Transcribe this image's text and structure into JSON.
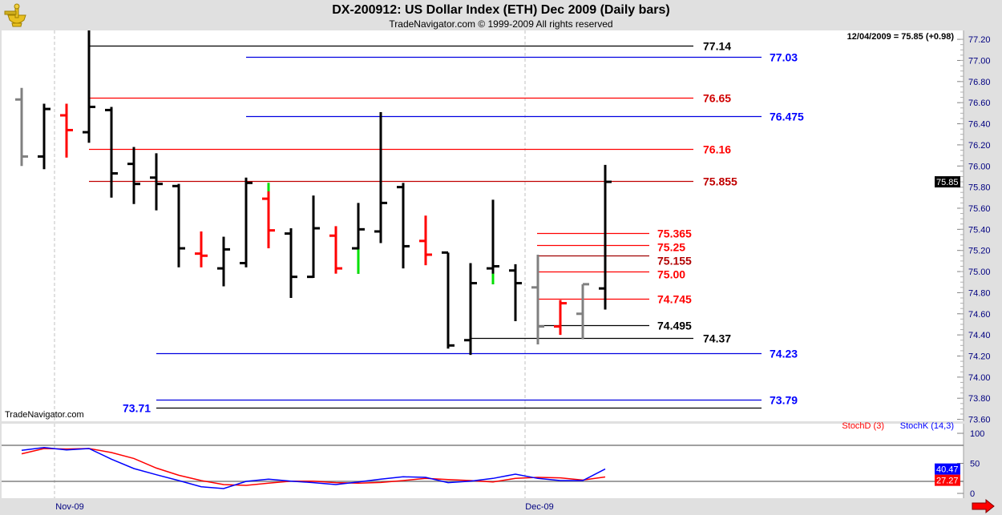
{
  "header": {
    "title": "DX-200912:  US Dollar Index (ETH) Dec 2009  (Daily bars)",
    "subtitle": "TradeNavigator.com © 1999-2009 All rights reserved",
    "last_value": "12/04/2009 = 75.85 (+0.98)",
    "watermark": "TradeNavigator.com",
    "logo": "sextant-logo"
  },
  "chart_data": [
    {
      "type": "ohlc",
      "title": "DX-200912:  US Dollar Index (ETH) Dec 2009  (Daily bars)",
      "ylim": [
        73.6,
        77.2
      ],
      "y_ticks": [
        "77.20",
        "77.00",
        "76.80",
        "76.60",
        "76.40",
        "76.20",
        "76.00",
        "75.80",
        "75.60",
        "75.40",
        "75.20",
        "75.00",
        "74.80",
        "74.60",
        "74.40",
        "74.20",
        "74.00",
        "73.80",
        "73.60"
      ],
      "x_tick_labels": [
        "Nov-09",
        "Dec-09"
      ],
      "last_price_label": "75.85",
      "colors": {
        "up": "#000000",
        "down": "#ff0000",
        "neutral": "#808080",
        "highlight": "#00e000"
      },
      "bars": [
        {
          "o": 76.63,
          "h": 76.74,
          "l": 76.0,
          "c": 76.09,
          "color": "#808080"
        },
        {
          "o": 76.09,
          "h": 76.59,
          "l": 75.97,
          "c": 76.54,
          "color": "#000000"
        },
        {
          "o": 76.48,
          "h": 76.59,
          "l": 76.08,
          "c": 76.34,
          "color": "#ff0000"
        },
        {
          "o": 76.32,
          "h": 77.3,
          "l": 76.22,
          "c": 76.56,
          "color": "#000000"
        },
        {
          "o": 76.53,
          "h": 76.56,
          "l": 75.7,
          "c": 75.93,
          "color": "#000000"
        },
        {
          "o": 76.02,
          "h": 76.18,
          "l": 75.64,
          "c": 75.83,
          "color": "#000000"
        },
        {
          "o": 75.89,
          "h": 76.12,
          "l": 75.58,
          "c": 75.83,
          "color": "#000000"
        },
        {
          "o": 75.81,
          "h": 75.83,
          "l": 75.04,
          "c": 75.22,
          "color": "#000000"
        },
        {
          "o": 75.17,
          "h": 75.38,
          "l": 75.04,
          "c": 75.15,
          "color": "#ff0000"
        },
        {
          "o": 75.03,
          "h": 75.33,
          "l": 74.86,
          "c": 75.21,
          "color": "#000000"
        },
        {
          "o": 75.08,
          "h": 75.89,
          "l": 75.04,
          "c": 75.84,
          "color": "#000000"
        },
        {
          "o": 75.69,
          "h": 75.84,
          "l": 75.22,
          "c": 75.39,
          "color": "#ff0000",
          "highlight": [
            75.76,
            75.84
          ]
        },
        {
          "o": 75.36,
          "h": 75.41,
          "l": 74.75,
          "c": 74.95,
          "color": "#000000"
        },
        {
          "o": 74.95,
          "h": 75.72,
          "l": 74.94,
          "c": 75.41,
          "color": "#000000"
        },
        {
          "o": 75.34,
          "h": 75.43,
          "l": 74.98,
          "c": 75.03,
          "color": "#ff0000"
        },
        {
          "o": 75.22,
          "h": 75.65,
          "l": 74.98,
          "c": 75.4,
          "color": "#000000",
          "highlight": [
            74.98,
            75.21
          ]
        },
        {
          "o": 75.38,
          "h": 76.51,
          "l": 75.27,
          "c": 75.65,
          "color": "#000000"
        },
        {
          "o": 75.8,
          "h": 75.84,
          "l": 75.03,
          "c": 75.24,
          "color": "#000000"
        },
        {
          "o": 75.29,
          "h": 75.53,
          "l": 75.06,
          "c": 75.16,
          "color": "#ff0000"
        },
        {
          "o": 75.18,
          "h": 75.18,
          "l": 74.27,
          "c": 74.3,
          "color": "#000000"
        },
        {
          "o": 74.35,
          "h": 75.08,
          "l": 74.21,
          "c": 74.89,
          "color": "#000000"
        },
        {
          "o": 75.03,
          "h": 75.68,
          "l": 74.88,
          "c": 75.05,
          "color": "#000000",
          "highlight": [
            74.88,
            74.98
          ]
        },
        {
          "o": 75.01,
          "h": 75.07,
          "l": 74.53,
          "c": 74.89,
          "color": "#000000"
        },
        {
          "o": 74.85,
          "h": 75.16,
          "l": 74.31,
          "c": 74.48,
          "color": "#808080"
        },
        {
          "o": 74.48,
          "h": 74.73,
          "l": 74.4,
          "c": 74.7,
          "color": "#ff0000"
        },
        {
          "o": 74.6,
          "h": 74.88,
          "l": 74.36,
          "c": 74.88,
          "color": "#808080"
        },
        {
          "o": 74.84,
          "h": 76.01,
          "l": 74.64,
          "c": 75.85,
          "color": "#000000"
        }
      ],
      "levels": [
        {
          "value": 77.14,
          "label": "77.14",
          "color": "#000000",
          "label_color": "#000000"
        },
        {
          "value": 77.03,
          "label": "77.03",
          "color": "#0000e0",
          "label_color": "#0000ff"
        },
        {
          "value": 76.65,
          "label": "76.65",
          "color": "#ff0000",
          "label_color": "#d00000"
        },
        {
          "value": 76.475,
          "label": "76.475",
          "color": "#0000e0",
          "label_color": "#0000ff"
        },
        {
          "value": 76.16,
          "label": "76.16",
          "color": "#ff0000",
          "label_color": "#ff0000"
        },
        {
          "value": 75.855,
          "label": "75.855",
          "color": "#c00000",
          "label_color": "#c00000"
        },
        {
          "value": 75.365,
          "label": "75.365",
          "color": "#ff0000",
          "label_color": "#ff0000"
        },
        {
          "value": 75.25,
          "label": "75.25",
          "color": "#ff0000",
          "label_color": "#ff0000"
        },
        {
          "value": 75.155,
          "label": "75.155",
          "color": "#a00000",
          "label_color": "#b00000"
        },
        {
          "value": 75.0,
          "label": "75.00",
          "color": "#ff0000",
          "label_color": "#ff0000"
        },
        {
          "value": 74.745,
          "label": "74.745",
          "color": "#ff0000",
          "label_color": "#ff0000"
        },
        {
          "value": 74.495,
          "label": "74.495",
          "color": "#000000",
          "label_color": "#000000"
        },
        {
          "value": 74.37,
          "label": "74.37",
          "color": "#000000",
          "label_color": "#000000"
        },
        {
          "value": 74.23,
          "label": "74.23",
          "color": "#0000e0",
          "label_color": "#0000ff"
        },
        {
          "value": 73.79,
          "label": "73.79",
          "color": "#0000e0",
          "label_color": "#0000ff"
        },
        {
          "value": 73.71,
          "label": "73.71",
          "color": "#000000",
          "label_color": "#0000ff"
        }
      ]
    },
    {
      "type": "line",
      "ylim": [
        0,
        100
      ],
      "y_ticks": [
        "100",
        "50",
        "0"
      ],
      "reference_lines": [
        80,
        20
      ],
      "legend_placement": "top-right",
      "series": [
        {
          "name": "StochD (3)",
          "color": "#ff0000",
          "last_label": "27.27",
          "values": [
            65.8,
            74.7,
            73.8,
            74.7,
            68,
            58.2,
            42.2,
            30.2,
            21.3,
            14.7,
            13.3,
            16.9,
            20.4,
            20.4,
            17.8,
            16.9,
            18.2,
            21.3,
            24.9,
            23.1,
            21.3,
            19.1,
            24.9,
            26.7,
            25.8,
            22.2,
            27.27
          ]
        },
        {
          "name": "StochK (14,3)",
          "color": "#0000ff",
          "last_label": "40.47",
          "values": [
            71.6,
            76.4,
            72.4,
            74.7,
            56.9,
            41.3,
            31.1,
            21.3,
            11.1,
            8,
            20,
            23.6,
            20.4,
            17.8,
            14.7,
            19.1,
            23.6,
            27.6,
            26.7,
            17.8,
            20.4,
            24.9,
            32,
            24.9,
            21.3,
            21.3,
            40.47
          ]
        }
      ]
    }
  ],
  "nav": {
    "scroll_right": "arrow-right-icon"
  }
}
